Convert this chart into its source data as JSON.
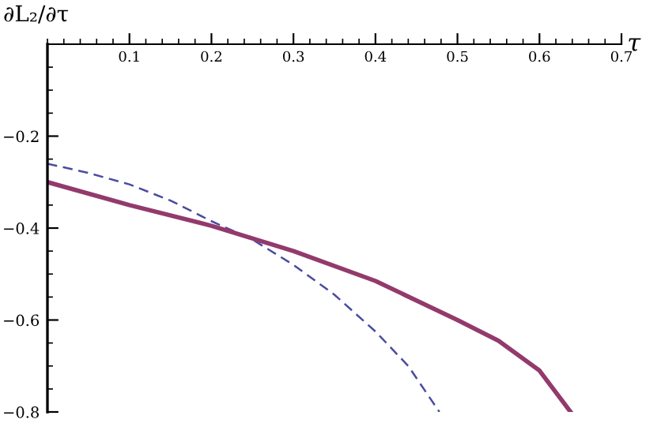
{
  "chart_data": {
    "type": "line",
    "xlabel": "τ",
    "ylabel": "∂L₂/∂τ",
    "xlim": [
      0,
      0.7
    ],
    "ylim": [
      -0.8,
      0
    ],
    "xticks": [
      0.1,
      0.2,
      0.3,
      0.4,
      0.5,
      0.6,
      0.7
    ],
    "yticks": [
      -0.2,
      -0.4,
      -0.6,
      -0.8
    ],
    "grid": false,
    "legend": false,
    "series": [
      {
        "color": "#4b4ba0",
        "line_style": "dashed",
        "x": [
          0,
          0.05,
          0.1,
          0.15,
          0.2,
          0.25,
          0.3,
          0.35,
          0.4,
          0.44,
          0.478
        ],
        "values": [
          -0.26,
          -0.28,
          -0.305,
          -0.34,
          -0.385,
          -0.425,
          -0.48,
          -0.545,
          -0.625,
          -0.7,
          -0.8
        ]
      },
      {
        "color": "#933a6c",
        "line_style": "solid",
        "x": [
          0,
          0.1,
          0.2,
          0.3,
          0.4,
          0.5,
          0.55,
          0.6,
          0.638
        ],
        "values": [
          -0.3,
          -0.35,
          -0.395,
          -0.45,
          -0.515,
          -0.6,
          -0.645,
          -0.71,
          -0.8
        ]
      }
    ]
  }
}
